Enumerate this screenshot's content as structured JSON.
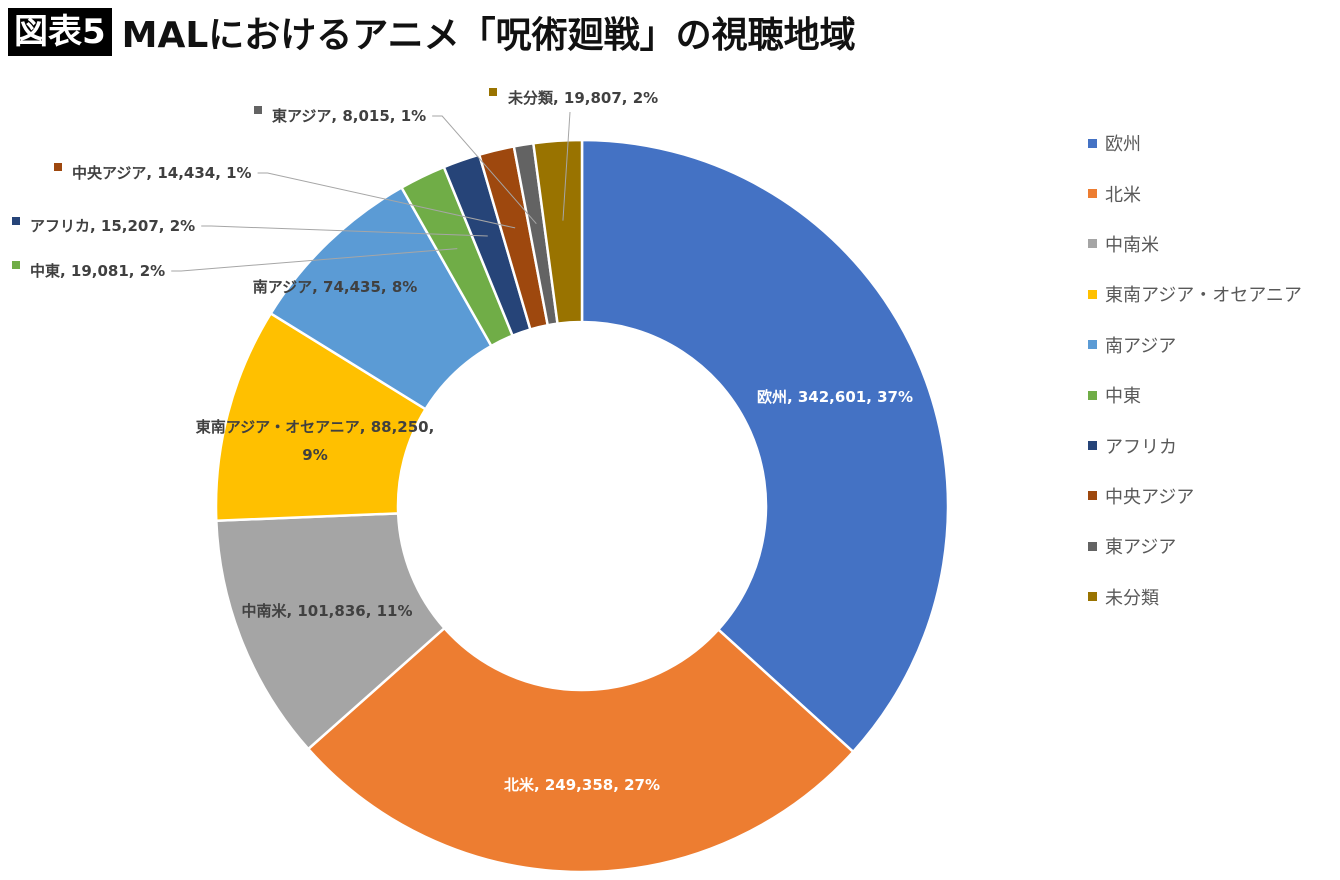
{
  "title": {
    "badge": "図表5",
    "text": "MALにおけるアニメ「呪術廻戦」の視聴地域"
  },
  "chart_data": {
    "type": "pie",
    "subtype": "donut",
    "title": "MALにおけるアニメ「呪術廻戦」の視聴地域",
    "categories": [
      "欧州",
      "北米",
      "中南米",
      "東南アジア・オセアニア",
      "南アジア",
      "中東",
      "アフリカ",
      "中央アジア",
      "東アジア",
      "未分類"
    ],
    "values": [
      342601,
      249358,
      101836,
      88250,
      74435,
      19081,
      15207,
      14434,
      8015,
      19807
    ],
    "percents": [
      "37%",
      "27%",
      "11%",
      "9%",
      "8%",
      "2%",
      "2%",
      "1%",
      "1%",
      "2%"
    ],
    "value_labels": [
      "342,601",
      "249,358",
      "101,836",
      "88,250",
      "74,435",
      "19,081",
      "15,207",
      "14,434",
      "8,015",
      "19,807"
    ],
    "colors": [
      "#4472C4",
      "#ED7D31",
      "#A5A5A5",
      "#FFC000",
      "#5B9BD5",
      "#70AD47",
      "#264478",
      "#9E480E",
      "#636363",
      "#997300"
    ],
    "legend_position": "right"
  }
}
